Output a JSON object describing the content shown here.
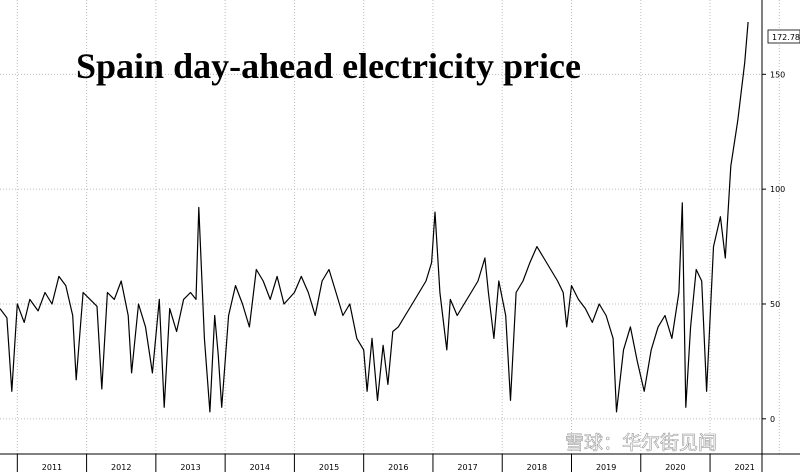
{
  "chart_data": {
    "type": "line",
    "title": "Spain day-ahead electricity price",
    "xlabel": "",
    "ylabel": "",
    "x_tick_labels": [
      "2011",
      "2012",
      "2013",
      "2014",
      "2015",
      "2016",
      "2017",
      "2018",
      "2019",
      "2020",
      "2021"
    ],
    "y_ticks": [
      0,
      50,
      100,
      150
    ],
    "ylim": [
      -4,
      172.78
    ],
    "xlim": [
      2010.75,
      2021.75
    ],
    "grid": true,
    "last_value_label": "172.78",
    "series": [
      {
        "color": "#000000",
        "points": [
          [
            2010.75,
            48
          ],
          [
            2010.85,
            44
          ],
          [
            2010.92,
            12
          ],
          [
            2011.0,
            50
          ],
          [
            2011.1,
            42
          ],
          [
            2011.18,
            52
          ],
          [
            2011.3,
            47
          ],
          [
            2011.4,
            55
          ],
          [
            2011.5,
            50
          ],
          [
            2011.6,
            62
          ],
          [
            2011.7,
            58
          ],
          [
            2011.8,
            45
          ],
          [
            2011.85,
            17
          ],
          [
            2011.95,
            55
          ],
          [
            2012.05,
            52
          ],
          [
            2012.15,
            49
          ],
          [
            2012.22,
            13
          ],
          [
            2012.3,
            55
          ],
          [
            2012.4,
            52
          ],
          [
            2012.5,
            60
          ],
          [
            2012.6,
            45
          ],
          [
            2012.65,
            20
          ],
          [
            2012.75,
            50
          ],
          [
            2012.85,
            40
          ],
          [
            2012.95,
            20
          ],
          [
            2013.05,
            52
          ],
          [
            2013.12,
            5
          ],
          [
            2013.2,
            48
          ],
          [
            2013.3,
            38
          ],
          [
            2013.4,
            52
          ],
          [
            2013.5,
            55
          ],
          [
            2013.58,
            52
          ],
          [
            2013.62,
            92
          ],
          [
            2013.7,
            35
          ],
          [
            2013.78,
            3
          ],
          [
            2013.85,
            45
          ],
          [
            2013.9,
            28
          ],
          [
            2013.95,
            5
          ],
          [
            2014.05,
            45
          ],
          [
            2014.15,
            58
          ],
          [
            2014.25,
            50
          ],
          [
            2014.35,
            40
          ],
          [
            2014.45,
            65
          ],
          [
            2014.55,
            60
          ],
          [
            2014.65,
            52
          ],
          [
            2014.75,
            62
          ],
          [
            2014.85,
            50
          ],
          [
            2015.0,
            55
          ],
          [
            2015.1,
            62
          ],
          [
            2015.2,
            55
          ],
          [
            2015.3,
            45
          ],
          [
            2015.4,
            60
          ],
          [
            2015.5,
            65
          ],
          [
            2015.6,
            55
          ],
          [
            2015.7,
            45
          ],
          [
            2015.8,
            50
          ],
          [
            2015.9,
            35
          ],
          [
            2016.0,
            30
          ],
          [
            2016.05,
            12
          ],
          [
            2016.12,
            35
          ],
          [
            2016.2,
            8
          ],
          [
            2016.28,
            32
          ],
          [
            2016.35,
            15
          ],
          [
            2016.42,
            38
          ],
          [
            2016.5,
            40
          ],
          [
            2016.6,
            45
          ],
          [
            2016.7,
            50
          ],
          [
            2016.8,
            55
          ],
          [
            2016.9,
            60
          ],
          [
            2016.98,
            68
          ],
          [
            2017.03,
            90
          ],
          [
            2017.1,
            55
          ],
          [
            2017.2,
            30
          ],
          [
            2017.25,
            52
          ],
          [
            2017.35,
            45
          ],
          [
            2017.45,
            50
          ],
          [
            2017.55,
            55
          ],
          [
            2017.65,
            60
          ],
          [
            2017.75,
            70
          ],
          [
            2017.8,
            55
          ],
          [
            2017.88,
            35
          ],
          [
            2017.95,
            60
          ],
          [
            2018.05,
            45
          ],
          [
            2018.12,
            8
          ],
          [
            2018.2,
            55
          ],
          [
            2018.3,
            60
          ],
          [
            2018.4,
            68
          ],
          [
            2018.5,
            75
          ],
          [
            2018.6,
            70
          ],
          [
            2018.7,
            65
          ],
          [
            2018.8,
            60
          ],
          [
            2018.88,
            55
          ],
          [
            2018.93,
            40
          ],
          [
            2019.0,
            58
          ],
          [
            2019.1,
            52
          ],
          [
            2019.2,
            48
          ],
          [
            2019.3,
            42
          ],
          [
            2019.4,
            50
          ],
          [
            2019.5,
            45
          ],
          [
            2019.6,
            35
          ],
          [
            2019.65,
            3
          ],
          [
            2019.75,
            30
          ],
          [
            2019.85,
            40
          ],
          [
            2019.95,
            25
          ],
          [
            2020.05,
            12
          ],
          [
            2020.15,
            30
          ],
          [
            2020.25,
            40
          ],
          [
            2020.35,
            45
          ],
          [
            2020.45,
            35
          ],
          [
            2020.55,
            55
          ],
          [
            2020.6,
            94
          ],
          [
            2020.65,
            5
          ],
          [
            2020.72,
            40
          ],
          [
            2020.8,
            65
          ],
          [
            2020.88,
            60
          ],
          [
            2020.95,
            12
          ],
          [
            2021.05,
            75
          ],
          [
            2021.15,
            88
          ],
          [
            2021.22,
            70
          ],
          [
            2021.3,
            110
          ],
          [
            2021.4,
            130
          ],
          [
            2021.5,
            155
          ],
          [
            2021.55,
            172.78
          ]
        ]
      }
    ]
  },
  "watermark": "雪球：华尔街见闻",
  "colors": {
    "background": "#ffffff",
    "line": "#000000",
    "grid": "#bdbdbd"
  }
}
